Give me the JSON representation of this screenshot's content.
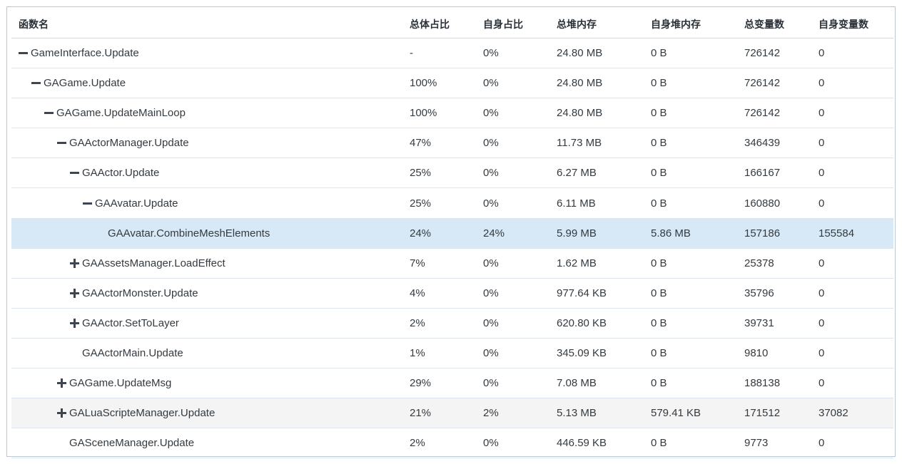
{
  "columns": [
    "函数名",
    "总体占比",
    "自身占比",
    "总堆内存",
    "自身堆内存",
    "总变量数",
    "自身变量数"
  ],
  "rows": [
    {
      "depth": 0,
      "toggle": "collapse",
      "name": "GameInterface.Update",
      "total_pct": "-",
      "self_pct": "0%",
      "total_heap": "24.80 MB",
      "self_heap": "0 B",
      "total_vars": "726142",
      "self_vars": "0",
      "state": ""
    },
    {
      "depth": 1,
      "toggle": "collapse",
      "name": "GAGame.Update",
      "total_pct": "100%",
      "self_pct": "0%",
      "total_heap": "24.80 MB",
      "self_heap": "0 B",
      "total_vars": "726142",
      "self_vars": "0",
      "state": ""
    },
    {
      "depth": 2,
      "toggle": "collapse",
      "name": "GAGame.UpdateMainLoop",
      "total_pct": "100%",
      "self_pct": "0%",
      "total_heap": "24.80 MB",
      "self_heap": "0 B",
      "total_vars": "726142",
      "self_vars": "0",
      "state": ""
    },
    {
      "depth": 3,
      "toggle": "collapse",
      "name": "GAActorManager.Update",
      "total_pct": "47%",
      "self_pct": "0%",
      "total_heap": "11.73 MB",
      "self_heap": "0 B",
      "total_vars": "346439",
      "self_vars": "0",
      "state": ""
    },
    {
      "depth": 4,
      "toggle": "collapse",
      "name": "GAActor.Update",
      "total_pct": "25%",
      "self_pct": "0%",
      "total_heap": "6.27 MB",
      "self_heap": "0 B",
      "total_vars": "166167",
      "self_vars": "0",
      "state": ""
    },
    {
      "depth": 5,
      "toggle": "collapse",
      "name": "GAAvatar.Update",
      "total_pct": "25%",
      "self_pct": "0%",
      "total_heap": "6.11 MB",
      "self_heap": "0 B",
      "total_vars": "160880",
      "self_vars": "0",
      "state": ""
    },
    {
      "depth": 6,
      "toggle": "none",
      "name": "GAAvatar.CombineMeshElements",
      "total_pct": "24%",
      "self_pct": "24%",
      "total_heap": "5.99 MB",
      "self_heap": "5.86 MB",
      "total_vars": "157186",
      "self_vars": "155584",
      "state": "selected"
    },
    {
      "depth": 4,
      "toggle": "expand",
      "name": "GAAssetsManager.LoadEffect",
      "total_pct": "7%",
      "self_pct": "0%",
      "total_heap": "1.62 MB",
      "self_heap": "0 B",
      "total_vars": "25378",
      "self_vars": "0",
      "state": ""
    },
    {
      "depth": 4,
      "toggle": "expand",
      "name": "GAActorMonster.Update",
      "total_pct": "4%",
      "self_pct": "0%",
      "total_heap": "977.64 KB",
      "self_heap": "0 B",
      "total_vars": "35796",
      "self_vars": "0",
      "state": ""
    },
    {
      "depth": 4,
      "toggle": "expand",
      "name": "GAActor.SetToLayer",
      "total_pct": "2%",
      "self_pct": "0%",
      "total_heap": "620.80 KB",
      "self_heap": "0 B",
      "total_vars": "39731",
      "self_vars": "0",
      "state": ""
    },
    {
      "depth": 4,
      "toggle": "none",
      "name": "GAActorMain.Update",
      "total_pct": "1%",
      "self_pct": "0%",
      "total_heap": "345.09 KB",
      "self_heap": "0 B",
      "total_vars": "9810",
      "self_vars": "0",
      "state": ""
    },
    {
      "depth": 3,
      "toggle": "expand",
      "name": "GAGame.UpdateMsg",
      "total_pct": "29%",
      "self_pct": "0%",
      "total_heap": "7.08 MB",
      "self_heap": "0 B",
      "total_vars": "188138",
      "self_vars": "0",
      "state": ""
    },
    {
      "depth": 3,
      "toggle": "expand",
      "name": "GALuaScripteManager.Update",
      "total_pct": "21%",
      "self_pct": "2%",
      "total_heap": "5.13 MB",
      "self_heap": "579.41 KB",
      "total_vars": "171512",
      "self_vars": "37082",
      "state": "hovered"
    },
    {
      "depth": 3,
      "toggle": "none",
      "name": "GASceneManager.Update",
      "total_pct": "2%",
      "self_pct": "0%",
      "total_heap": "446.59 KB",
      "self_heap": "0 B",
      "total_vars": "9773",
      "self_vars": "0",
      "state": ""
    }
  ]
}
